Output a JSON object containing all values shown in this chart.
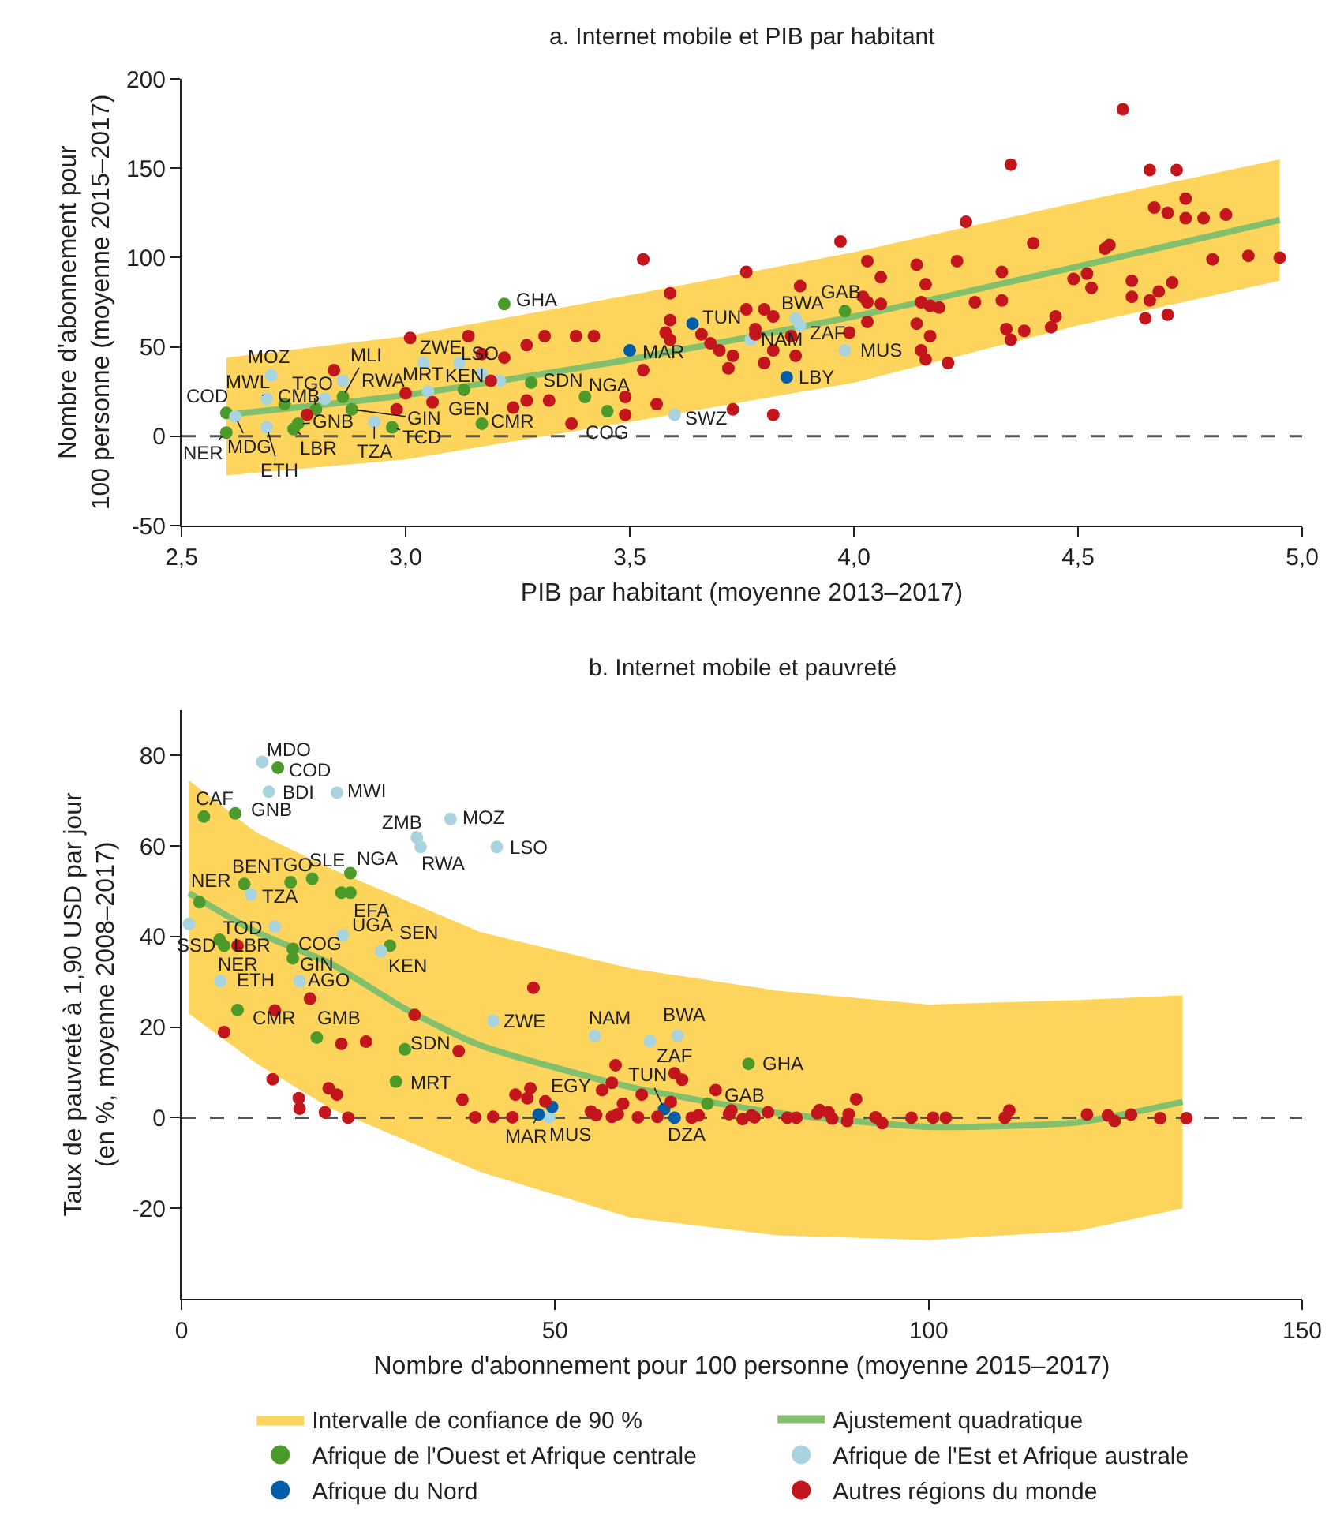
{
  "chart_data": [
    {
      "type": "scatter",
      "title": "a. Internet mobile et PIB par habitant",
      "xlabel": "PIB par habitant (moyenne 2013–2017)",
      "ylabel": "Nombre d'abonnement pour\n100 personne (moyenne 2015–2017)",
      "xlim": [
        2.5,
        5.0
      ],
      "xticks": [
        {
          "value": 2.5,
          "label": "2,5"
        },
        {
          "value": 3.0,
          "label": "3,0"
        },
        {
          "value": 3.5,
          "label": "3,5"
        },
        {
          "value": 4.0,
          "label": "4,0"
        },
        {
          "value": 4.5,
          "label": "4,5"
        },
        {
          "value": 5.0,
          "label": "5,0"
        }
      ],
      "ylim": [
        -50,
        200
      ],
      "yticks": [
        -50,
        0,
        50,
        100,
        150,
        200
      ],
      "ref_lines": [
        {
          "axis": "y",
          "value": 0,
          "line_style": "dashed",
          "color": "#555555"
        }
      ],
      "series": [
        {
          "type": "area",
          "color": "#fed55c"
        },
        {
          "type": "line",
          "color": "#82c06d",
          "x": [
            2.6,
            3.0,
            3.5,
            4.0,
            4.5,
            4.95
          ],
          "values": [
            12,
            23,
            43,
            67,
            95,
            121
          ],
          "lower": [
            -22,
            -13,
            8,
            30,
            62,
            87
          ],
          "upper": [
            44,
            56,
            79,
            103,
            131,
            155
          ]
        },
        {
          "type": "scatter",
          "marker": "circle",
          "color": "#4c9a2a",
          "x": [
            2.6,
            2.6,
            2.73,
            2.76,
            2.75,
            2.8,
            2.86,
            2.88,
            2.97,
            3.13,
            3.17,
            3.22,
            3.28,
            3.4,
            3.45,
            3.98
          ],
          "values": [
            2,
            13,
            18,
            7,
            4,
            15,
            22,
            15,
            5,
            26,
            7,
            74,
            30,
            22,
            14,
            70
          ]
        },
        {
          "type": "scatter",
          "marker": "circle",
          "color": "#a9d4df",
          "x": [
            2.62,
            2.69,
            2.7,
            2.69,
            2.82,
            2.86,
            2.93,
            3.04,
            3.05,
            3.12,
            3.17,
            3.21,
            3.6,
            3.77,
            3.87,
            3.88,
            3.98
          ],
          "values": [
            11,
            21,
            34,
            5,
            21,
            31,
            8,
            41,
            25,
            41,
            35,
            31,
            12,
            54,
            66,
            62,
            48
          ]
        },
        {
          "type": "scatter",
          "marker": "circle",
          "color": "#005ea8",
          "x": [
            3.5,
            3.64,
            3.85
          ],
          "values": [
            48,
            63,
            33
          ]
        },
        {
          "type": "scatter",
          "marker": "circle",
          "color": "#c3161c",
          "x": [
            2.78,
            2.84,
            2.98,
            3.0,
            3.01,
            3.06,
            3.14,
            3.17,
            3.19,
            3.22,
            3.24,
            3.27,
            3.27,
            3.31,
            3.32,
            3.37,
            3.38,
            3.42,
            3.49,
            3.49,
            3.53,
            3.53,
            3.56,
            3.59,
            3.58,
            3.59,
            3.59,
            3.66,
            3.68,
            3.7,
            3.72,
            3.73,
            3.73,
            3.76,
            3.76,
            3.78,
            3.78,
            3.8,
            3.8,
            3.82,
            3.82,
            3.82,
            3.86,
            3.87,
            3.88,
            3.97,
            3.99,
            4.02,
            4.03,
            4.03,
            4.03,
            4.06,
            4.06,
            4.14,
            4.16,
            4.15,
            4.14,
            4.17,
            4.15,
            4.16,
            4.17,
            4.19,
            4.21,
            4.23,
            4.25,
            4.27,
            4.33,
            4.33,
            4.34,
            4.35,
            4.35,
            4.38,
            4.4,
            4.44,
            4.45,
            4.49,
            4.52,
            4.53,
            4.56,
            4.57,
            4.6,
            4.62,
            4.62,
            4.65,
            4.66,
            4.66,
            4.67,
            4.68,
            4.7,
            4.71,
            4.7,
            4.72,
            4.74,
            4.74,
            4.78,
            4.8,
            4.83,
            4.88,
            4.95
          ],
          "values": [
            12,
            37,
            15,
            24,
            55,
            19,
            56,
            46,
            31,
            44,
            16,
            51,
            20,
            56,
            20,
            7,
            56,
            56,
            22,
            12,
            99,
            37,
            18,
            80,
            58,
            65,
            54,
            57,
            52,
            48,
            38,
            45,
            15,
            92,
            71,
            60,
            57,
            41,
            71,
            67,
            48,
            12,
            56,
            45,
            84,
            109,
            58,
            78,
            75,
            98,
            64,
            89,
            74,
            96,
            85,
            75,
            63,
            56,
            48,
            43,
            73,
            72,
            41,
            98,
            120,
            75,
            92,
            76,
            60,
            152,
            54,
            59,
            108,
            61,
            67,
            88,
            91,
            83,
            105,
            107,
            183,
            87,
            78,
            66,
            76,
            149,
            128,
            81,
            68,
            86,
            125,
            149,
            133,
            122,
            122,
            99,
            124,
            101,
            100
          ]
        }
      ],
      "annotations": [
        {
          "text": "NER",
          "x": 2.6,
          "y": 2
        },
        {
          "text": "COD",
          "x": 2.6,
          "y": 13
        },
        {
          "text": "MDG",
          "x": 2.62,
          "y": 11
        },
        {
          "text": "MWL",
          "x": 2.69,
          "y": 21
        },
        {
          "text": "MOZ",
          "x": 2.7,
          "y": 34
        },
        {
          "text": "ETH",
          "x": 2.69,
          "y": 5
        },
        {
          "text": "CMB",
          "x": 2.73,
          "y": 18
        },
        {
          "text": "GNB",
          "x": 2.76,
          "y": 7
        },
        {
          "text": "LBR",
          "x": 2.75,
          "y": 4
        },
        {
          "text": "TGO",
          "x": 2.8,
          "y": 15
        },
        {
          "text": "MLI",
          "x": 2.86,
          "y": 22
        },
        {
          "text": "RWA",
          "x": 2.86,
          "y": 31
        },
        {
          "text": "GIN",
          "x": 2.88,
          "y": 15
        },
        {
          "text": "TZA",
          "x": 2.93,
          "y": 8
        },
        {
          "text": "TCD",
          "x": 2.97,
          "y": 5
        },
        {
          "text": "ZWE",
          "x": 3.04,
          "y": 41
        },
        {
          "text": "MRT",
          "x": 3.05,
          "y": 25
        },
        {
          "text": "KEN",
          "x": 3.12,
          "y": 41
        },
        {
          "text": "LSO",
          "x": 3.17,
          "y": 35
        },
        {
          "text": "GEN",
          "x": 3.13,
          "y": 26
        },
        {
          "text": "CMR",
          "x": 3.17,
          "y": 7
        },
        {
          "text": "GHA",
          "x": 3.22,
          "y": 74
        },
        {
          "text": "SDN",
          "x": 3.28,
          "y": 30
        },
        {
          "text": "NGA",
          "x": 3.4,
          "y": 22
        },
        {
          "text": "COG",
          "x": 3.45,
          "y": 14
        },
        {
          "text": "MAR",
          "x": 3.5,
          "y": 48
        },
        {
          "text": "SWZ",
          "x": 3.6,
          "y": 12
        },
        {
          "text": "TUN",
          "x": 3.64,
          "y": 63
        },
        {
          "text": "NAM",
          "x": 3.77,
          "y": 54
        },
        {
          "text": "LBY",
          "x": 3.85,
          "y": 33
        },
        {
          "text": "BWA",
          "x": 3.87,
          "y": 66
        },
        {
          "text": "ZAF",
          "x": 3.88,
          "y": 62
        },
        {
          "text": "GAB",
          "x": 3.98,
          "y": 70
        },
        {
          "text": "MUS",
          "x": 3.98,
          "y": 48
        }
      ]
    },
    {
      "type": "scatter",
      "title": "b. Internet mobile et pauvreté",
      "xlabel": "Nombre d'abonnement pour 100 personne (moyenne 2015–2017)",
      "ylabel": "Taux de pauvreté à 1,90 USD par jour\n(en %, moyenne 2008–2017)",
      "legend": "bottom",
      "xlim": [
        0,
        150
      ],
      "xticks": [
        0,
        50,
        100,
        150
      ],
      "ylim": [
        -40,
        90
      ],
      "yticks": [
        -20,
        0,
        20,
        40,
        60,
        80
      ],
      "ref_lines": [
        {
          "axis": "y",
          "value": 0,
          "line_style": "dashed",
          "color": "#555555"
        }
      ],
      "series": [
        {
          "type": "area",
          "name": "Intervalle de confiance de 90 %",
          "color": "#fed55c"
        },
        {
          "type": "line",
          "name": "Ajustement quadratique",
          "color": "#82c06d",
          "x": [
            1,
            10,
            20,
            30,
            40,
            60,
            80,
            100,
            120,
            134
          ],
          "values": [
            49.6,
            41,
            34,
            24,
            16,
            6.8,
            1,
            -2,
            -1,
            3.5
          ],
          "lower": [
            23,
            12,
            2,
            -5,
            -12,
            -22,
            -26,
            -27,
            -25,
            -20
          ],
          "upper": [
            74.5,
            63,
            55,
            48,
            41,
            33,
            28,
            25,
            26,
            27
          ]
        },
        {
          "type": "scatter",
          "marker": "circle",
          "name": "Afrique de l'Ouest et Afrique centrale",
          "color": "#4c9a2a",
          "x": [
            12.9,
            3.0,
            7.2,
            2.4,
            8.4,
            14.6,
            17.5,
            22.6,
            21.4,
            22.6,
            27.9,
            5.1,
            5.7,
            14.9,
            14.9,
            7.5,
            18.1,
            29.9,
            28.7,
            70.4,
            75.9
          ],
          "values": [
            77.3,
            66.5,
            67.2,
            47.6,
            51.6,
            52,
            52.8,
            54,
            49.7,
            49.7,
            38,
            39.3,
            38,
            37.3,
            35.2,
            23.8,
            17.7,
            15.1,
            8,
            3.1,
            11.9
          ]
        },
        {
          "type": "scatter",
          "marker": "circle",
          "name": "Afrique de l'Est et Afrique australe",
          "color": "#a9d4df",
          "x": [
            10.8,
            11.7,
            20.8,
            31.5,
            32,
            36,
            42.2,
            9.3,
            1.0,
            12.5,
            21.6,
            26.7,
            5.2,
            15.8,
            41.7,
            55.3,
            66.4,
            62.7,
            49.2
          ],
          "values": [
            78.6,
            72,
            71.8,
            61.9,
            59.8,
            66,
            59.8,
            49.3,
            42.8,
            42.2,
            40.3,
            36.8,
            30.2,
            30.2,
            21.4,
            18.1,
            18.1,
            16.9,
            0.1
          ]
        },
        {
          "type": "scatter",
          "marker": "circle",
          "name": "Afrique du Nord",
          "color": "#005ea8",
          "x": [
            49.6,
            47.8,
            64.6,
            66
          ],
          "values": [
            2.4,
            0.7,
            1.9,
            0
          ]
        },
        {
          "type": "scatter",
          "marker": "circle",
          "name": "Autres régions du monde",
          "color": "#c3161c",
          "x": [
            7.5,
            17.2,
            12.5,
            5.7,
            21.4,
            24.7,
            31.2,
            37.1,
            47.1,
            12.2,
            15.7,
            15.8,
            19.7,
            20.8,
            19.2,
            22.3,
            37.6,
            39.3,
            41.7,
            44.3,
            44.7,
            46.3,
            46.7,
            48.7,
            58.1,
            57.6,
            56.3,
            59.1,
            54.8,
            55.5,
            57.6,
            58.4,
            61.1,
            61.6,
            63.7,
            65.5,
            66,
            67,
            68.3,
            69.2,
            71.5,
            73.3,
            73.6,
            75.1,
            76.3,
            76.7,
            78.5,
            81.1,
            82.3,
            85.1,
            85.4,
            86.6,
            87.1,
            89.3,
            89.1,
            90.3,
            92.9,
            93.8,
            97.7,
            100.6,
            102.3,
            110.2,
            110.8,
            121.2,
            124,
            124.9,
            127.1,
            131,
            134.5
          ],
          "values": [
            38,
            26.3,
            23.7,
            18.9,
            16.3,
            16.8,
            22.7,
            14.7,
            28.7,
            8.5,
            4.3,
            2,
            6.5,
            5.1,
            1.2,
            0,
            4,
            0.1,
            0.2,
            0.1,
            5.1,
            4.3,
            6.5,
            3.6,
            11.6,
            7.7,
            6.1,
            3.1,
            1.4,
            0.6,
            0.2,
            0.8,
            0.1,
            5.1,
            0.2,
            3.5,
            9.8,
            8.4,
            0,
            0.5,
            6.1,
            0.8,
            1.6,
            -0.3,
            0.5,
            0.1,
            1.2,
            0,
            0,
            1,
            1.7,
            1.2,
            -0.2,
            0.8,
            -0.7,
            4.1,
            0.1,
            -1.2,
            0,
            0,
            0,
            0,
            1.6,
            0.7,
            0.5,
            -0.7,
            0.7,
            -0.1,
            -0.1
          ]
        }
      ],
      "annotations": [
        {
          "text": "MDO",
          "x": 10.8,
          "y": 78.6
        },
        {
          "text": "COD",
          "x": 12.9,
          "y": 77.3
        },
        {
          "text": "BDI",
          "x": 11.7,
          "y": 72
        },
        {
          "text": "MWI",
          "x": 20.8,
          "y": 71.8
        },
        {
          "text": "CAF",
          "x": 3.0,
          "y": 66.5
        },
        {
          "text": "GNB",
          "x": 7.2,
          "y": 67.2
        },
        {
          "text": "ZMB",
          "x": 31.5,
          "y": 61.9
        },
        {
          "text": "RWA",
          "x": 32,
          "y": 59.8
        },
        {
          "text": "MOZ",
          "x": 36,
          "y": 66
        },
        {
          "text": "LSO",
          "x": 42.2,
          "y": 59.8
        },
        {
          "text": "NER",
          "x": 2.4,
          "y": 47.6
        },
        {
          "text": "BEN",
          "x": 8.4,
          "y": 51.6
        },
        {
          "text": "TZA",
          "x": 9.3,
          "y": 49.3
        },
        {
          "text": "TGO",
          "x": 14.6,
          "y": 52
        },
        {
          "text": "SLE",
          "x": 17.5,
          "y": 52.8
        },
        {
          "text": "NGA",
          "x": 22.6,
          "y": 54
        },
        {
          "text": "EFA",
          "x": 22.6,
          "y": 49.7
        },
        {
          "text": "SSD",
          "x": 1.0,
          "y": 42.8
        },
        {
          "text": "UGA",
          "x": 21.6,
          "y": 40.3
        },
        {
          "text": "SEN",
          "x": 27.9,
          "y": 38
        },
        {
          "text": "KEN",
          "x": 26.7,
          "y": 36.8
        },
        {
          "text": "TOD",
          "x": 5.1,
          "y": 39.3
        },
        {
          "text": "NER",
          "x": 5.7,
          "y": 38
        },
        {
          "text": "LBR",
          "x": 7.5,
          "y": 38
        },
        {
          "text": "COG",
          "x": 14.9,
          "y": 37.3
        },
        {
          "text": "GIN",
          "x": 14.9,
          "y": 35.2
        },
        {
          "text": "ETH",
          "x": 5.2,
          "y": 30.2
        },
        {
          "text": "AGO",
          "x": 15.8,
          "y": 30.2
        },
        {
          "text": "CMR",
          "x": 7.5,
          "y": 23.8
        },
        {
          "text": "GMB",
          "x": 18.1,
          "y": 17.7
        },
        {
          "text": "SDN",
          "x": 29.9,
          "y": 15.1
        },
        {
          "text": "MRT",
          "x": 28.7,
          "y": 8
        },
        {
          "text": "ZWE",
          "x": 41.7,
          "y": 21.4
        },
        {
          "text": "NAM",
          "x": 55.3,
          "y": 18.1
        },
        {
          "text": "BWA",
          "x": 66.4,
          "y": 18.1
        },
        {
          "text": "ZAF",
          "x": 62.7,
          "y": 16.9
        },
        {
          "text": "TUN",
          "x": 64.6,
          "y": 1.9
        },
        {
          "text": "DZA",
          "x": 66,
          "y": 0
        },
        {
          "text": "EGY",
          "x": 49.6,
          "y": 2.4
        },
        {
          "text": "MAR",
          "x": 47.8,
          "y": 0.7
        },
        {
          "text": "MUS",
          "x": 49.2,
          "y": 0.1
        },
        {
          "text": "GAB",
          "x": 70.4,
          "y": 3.1
        },
        {
          "text": "GHA",
          "x": 75.9,
          "y": 11.9
        }
      ]
    }
  ]
}
